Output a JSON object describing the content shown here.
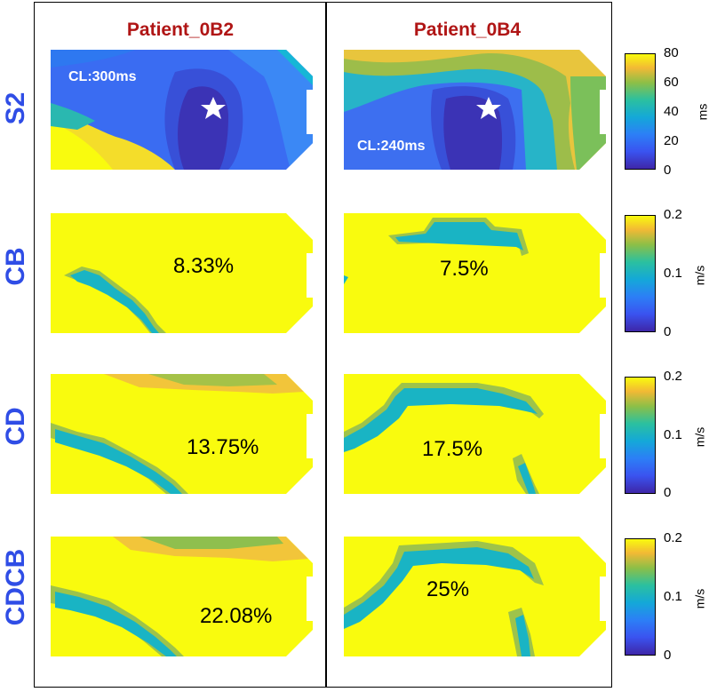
{
  "columns": [
    {
      "title": "Patient_0B2"
    },
    {
      "title": "Patient_0B4"
    }
  ],
  "rows": [
    {
      "label": "S2"
    },
    {
      "label": "CB"
    },
    {
      "label": "CD"
    },
    {
      "label": "CDCB"
    }
  ],
  "panels": {
    "s2_0b2": {
      "cl_label": "CL:300ms"
    },
    "s2_0b4": {
      "cl_label": "CL:240ms"
    },
    "cb_0b2": {
      "percent": "8.33%"
    },
    "cb_0b4": {
      "percent": "7.5%"
    },
    "cd_0b2": {
      "percent": "13.75%"
    },
    "cd_0b4": {
      "percent": "17.5%"
    },
    "cdcb_0b2": {
      "percent": "22.08%"
    },
    "cdcb_0b4": {
      "percent": "25%"
    }
  },
  "colorbars": [
    {
      "unit": "ms",
      "ticks": [
        "80",
        "60",
        "40",
        "20",
        "0"
      ]
    },
    {
      "unit": "m/s",
      "ticks": [
        "0.2",
        "0.1",
        "0"
      ]
    },
    {
      "unit": "m/s",
      "ticks": [
        "0.2",
        "0.1",
        "0"
      ]
    },
    {
      "unit": "m/s",
      "ticks": [
        "0.2",
        "0.1",
        "0"
      ]
    }
  ],
  "colors": {
    "title_red": "#b01515",
    "label_blue": "#2f4de6",
    "parula_low": "#3e26a8",
    "parula_mid": "#1fb5b5",
    "parula_high": "#f9fb0e"
  }
}
